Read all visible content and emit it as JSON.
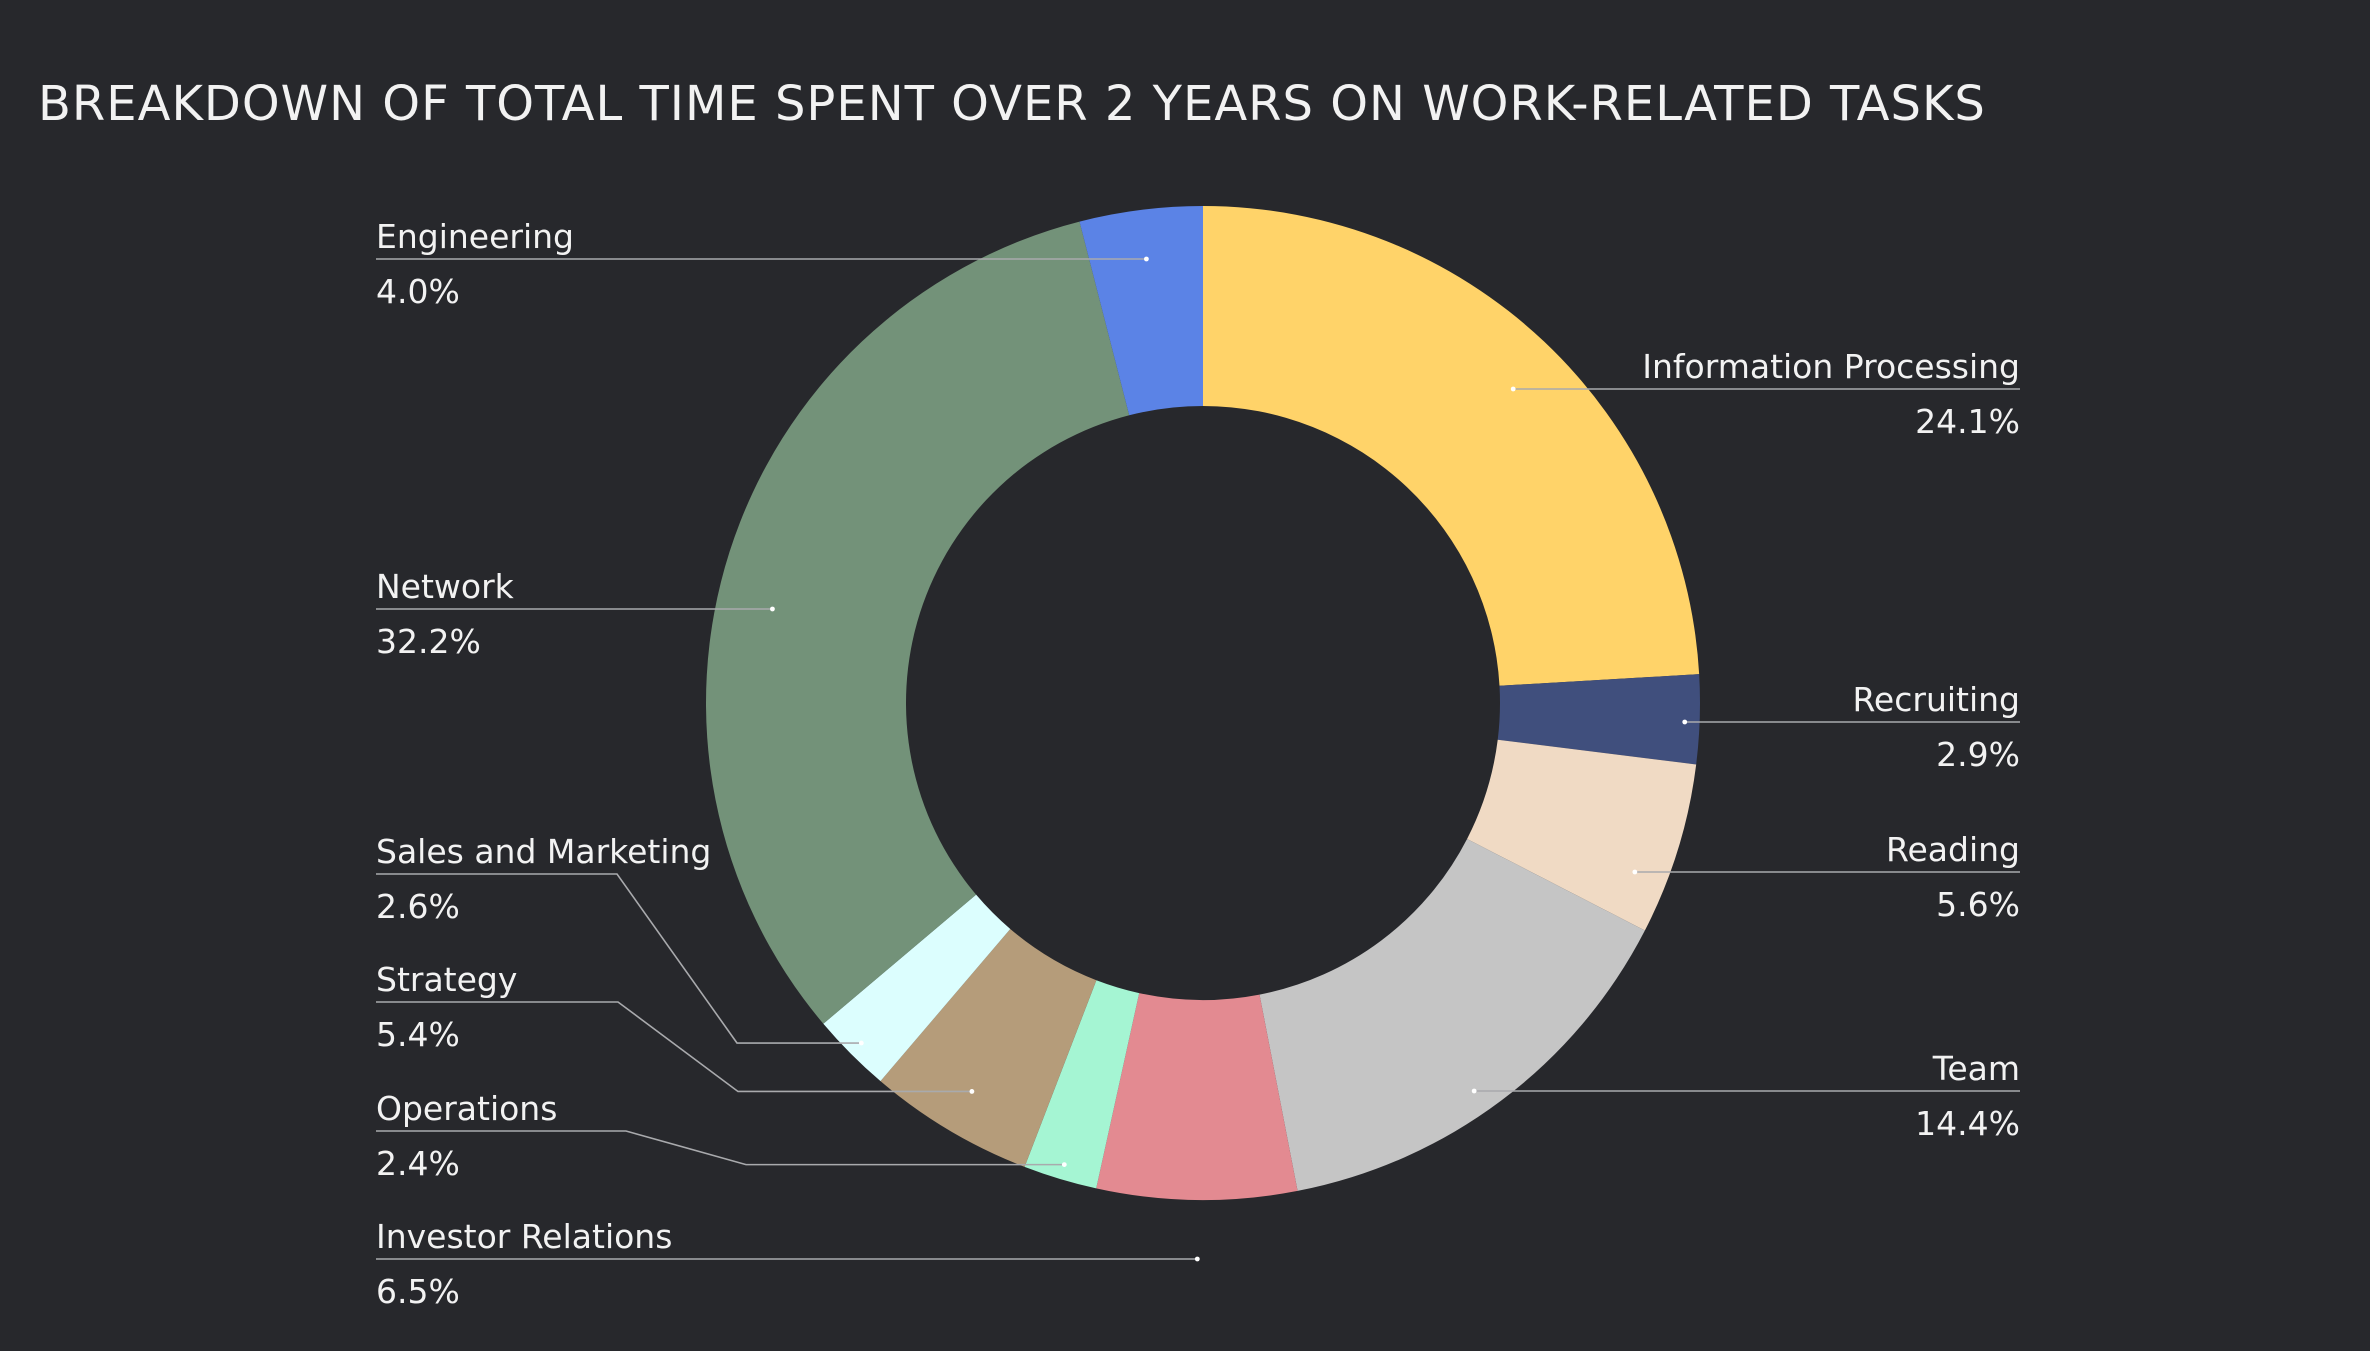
{
  "chart_data": {
    "type": "pie",
    "variant": "donut",
    "title": "BREAKDOWN OF TOTAL TIME SPENT OVER 2 YEARS ON WORK-RELATED TASKS",
    "start": "12 o'clock",
    "direction": "clockwise",
    "slices": [
      {
        "label": "Information Processing",
        "value": 24.1,
        "display": "24.1%",
        "color": "#ffd369",
        "side": "right"
      },
      {
        "label": "Recruiting",
        "value": 2.9,
        "display": "2.9%",
        "color": "#404f7d",
        "side": "right"
      },
      {
        "label": "Reading",
        "value": 5.6,
        "display": "5.6%",
        "color": "#f0dac4",
        "side": "right"
      },
      {
        "label": "Team",
        "value": 14.4,
        "display": "14.4%",
        "color": "#c5c5c5",
        "side": "right"
      },
      {
        "label": "Investor Relations",
        "value": 6.5,
        "display": "6.5%",
        "color": "#e38a91",
        "side": "left"
      },
      {
        "label": "Operations",
        "value": 2.4,
        "display": "2.4%",
        "color": "#a5f5d3",
        "side": "left"
      },
      {
        "label": "Strategy",
        "value": 5.4,
        "display": "5.4%",
        "color": "#b59c7a",
        "side": "left"
      },
      {
        "label": "Sales and Marketing",
        "value": 2.6,
        "display": "2.6%",
        "color": "#dcfefe",
        "side": "left"
      },
      {
        "label": "Network",
        "value": 32.2,
        "display": "32.2%",
        "color": "#739279",
        "side": "left"
      },
      {
        "label": "Engineering",
        "value": 4.0,
        "display": "4.0%",
        "color": "#5b83e6",
        "side": "left"
      }
    ]
  }
}
